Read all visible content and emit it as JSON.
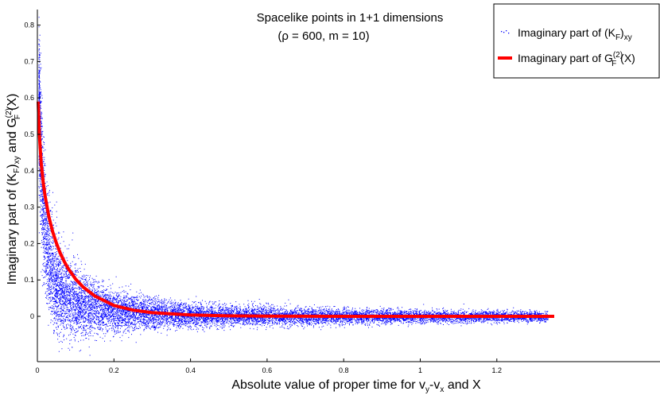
{
  "chart_data": {
    "type": "scatter",
    "title": "Spacelike points in 1+1 dimensions",
    "subtitle": "(ρ = 600, m = 10)",
    "xlabel": {
      "main": "Absolute value of proper time for v",
      "s1": "y",
      "mid": "-v",
      "s2": "x",
      "end": " and X"
    },
    "ylabel": {
      "a": "Imaginary part of (K",
      "b": "F",
      "c": ")",
      "d": "xy",
      "e": " and G",
      "f": "(2)",
      "g": "F",
      "h": "(X)"
    },
    "xlim": [
      0,
      1.35
    ],
    "ylim": [
      -0.12,
      0.82
    ],
    "x_ticks": [
      0,
      0.2,
      0.4,
      0.6,
      0.8,
      1,
      1.2
    ],
    "x_tick_labels": [
      "0",
      "0.2",
      "0.4",
      "0.6",
      "0.8",
      "1",
      "1.2"
    ],
    "y_ticks": [
      0,
      0.1,
      0.2,
      0.3,
      0.4,
      0.5,
      0.6,
      0.7,
      0.8
    ],
    "y_tick_labels": [
      "0",
      "0.1",
      "0.2",
      "0.3",
      "0.4",
      "0.5",
      "0.6",
      "0.7",
      "0.8"
    ],
    "grid": false,
    "legend_position": "top-right",
    "series": [
      {
        "name": {
          "a": "Imaginary part of (K",
          "b": "F",
          "c": ")",
          "d": "xy"
        },
        "kind": "scatter",
        "color": "#0000ff",
        "approx_points": 60000
      },
      {
        "name": {
          "a": "Imaginary part of G",
          "b": "(2)",
          "c": "F",
          "d": "(X)"
        },
        "kind": "line",
        "color": "#ff0000",
        "x": [
          0.002,
          0.005,
          0.01,
          0.015,
          0.02,
          0.03,
          0.04,
          0.05,
          0.06,
          0.07,
          0.08,
          0.1,
          0.12,
          0.15,
          0.2,
          0.25,
          0.3,
          0.4,
          0.5,
          0.6,
          0.8,
          1.0,
          1.2,
          1.35
        ],
        "y": [
          0.59,
          0.505,
          0.42,
          0.37,
          0.332,
          0.274,
          0.232,
          0.2,
          0.173,
          0.151,
          0.132,
          0.102,
          0.08,
          0.056,
          0.03,
          0.017,
          0.01,
          0.0037,
          0.0014,
          0.0005,
          0.0001,
          0.0,
          0.0,
          0.0
        ]
      }
    ]
  }
}
